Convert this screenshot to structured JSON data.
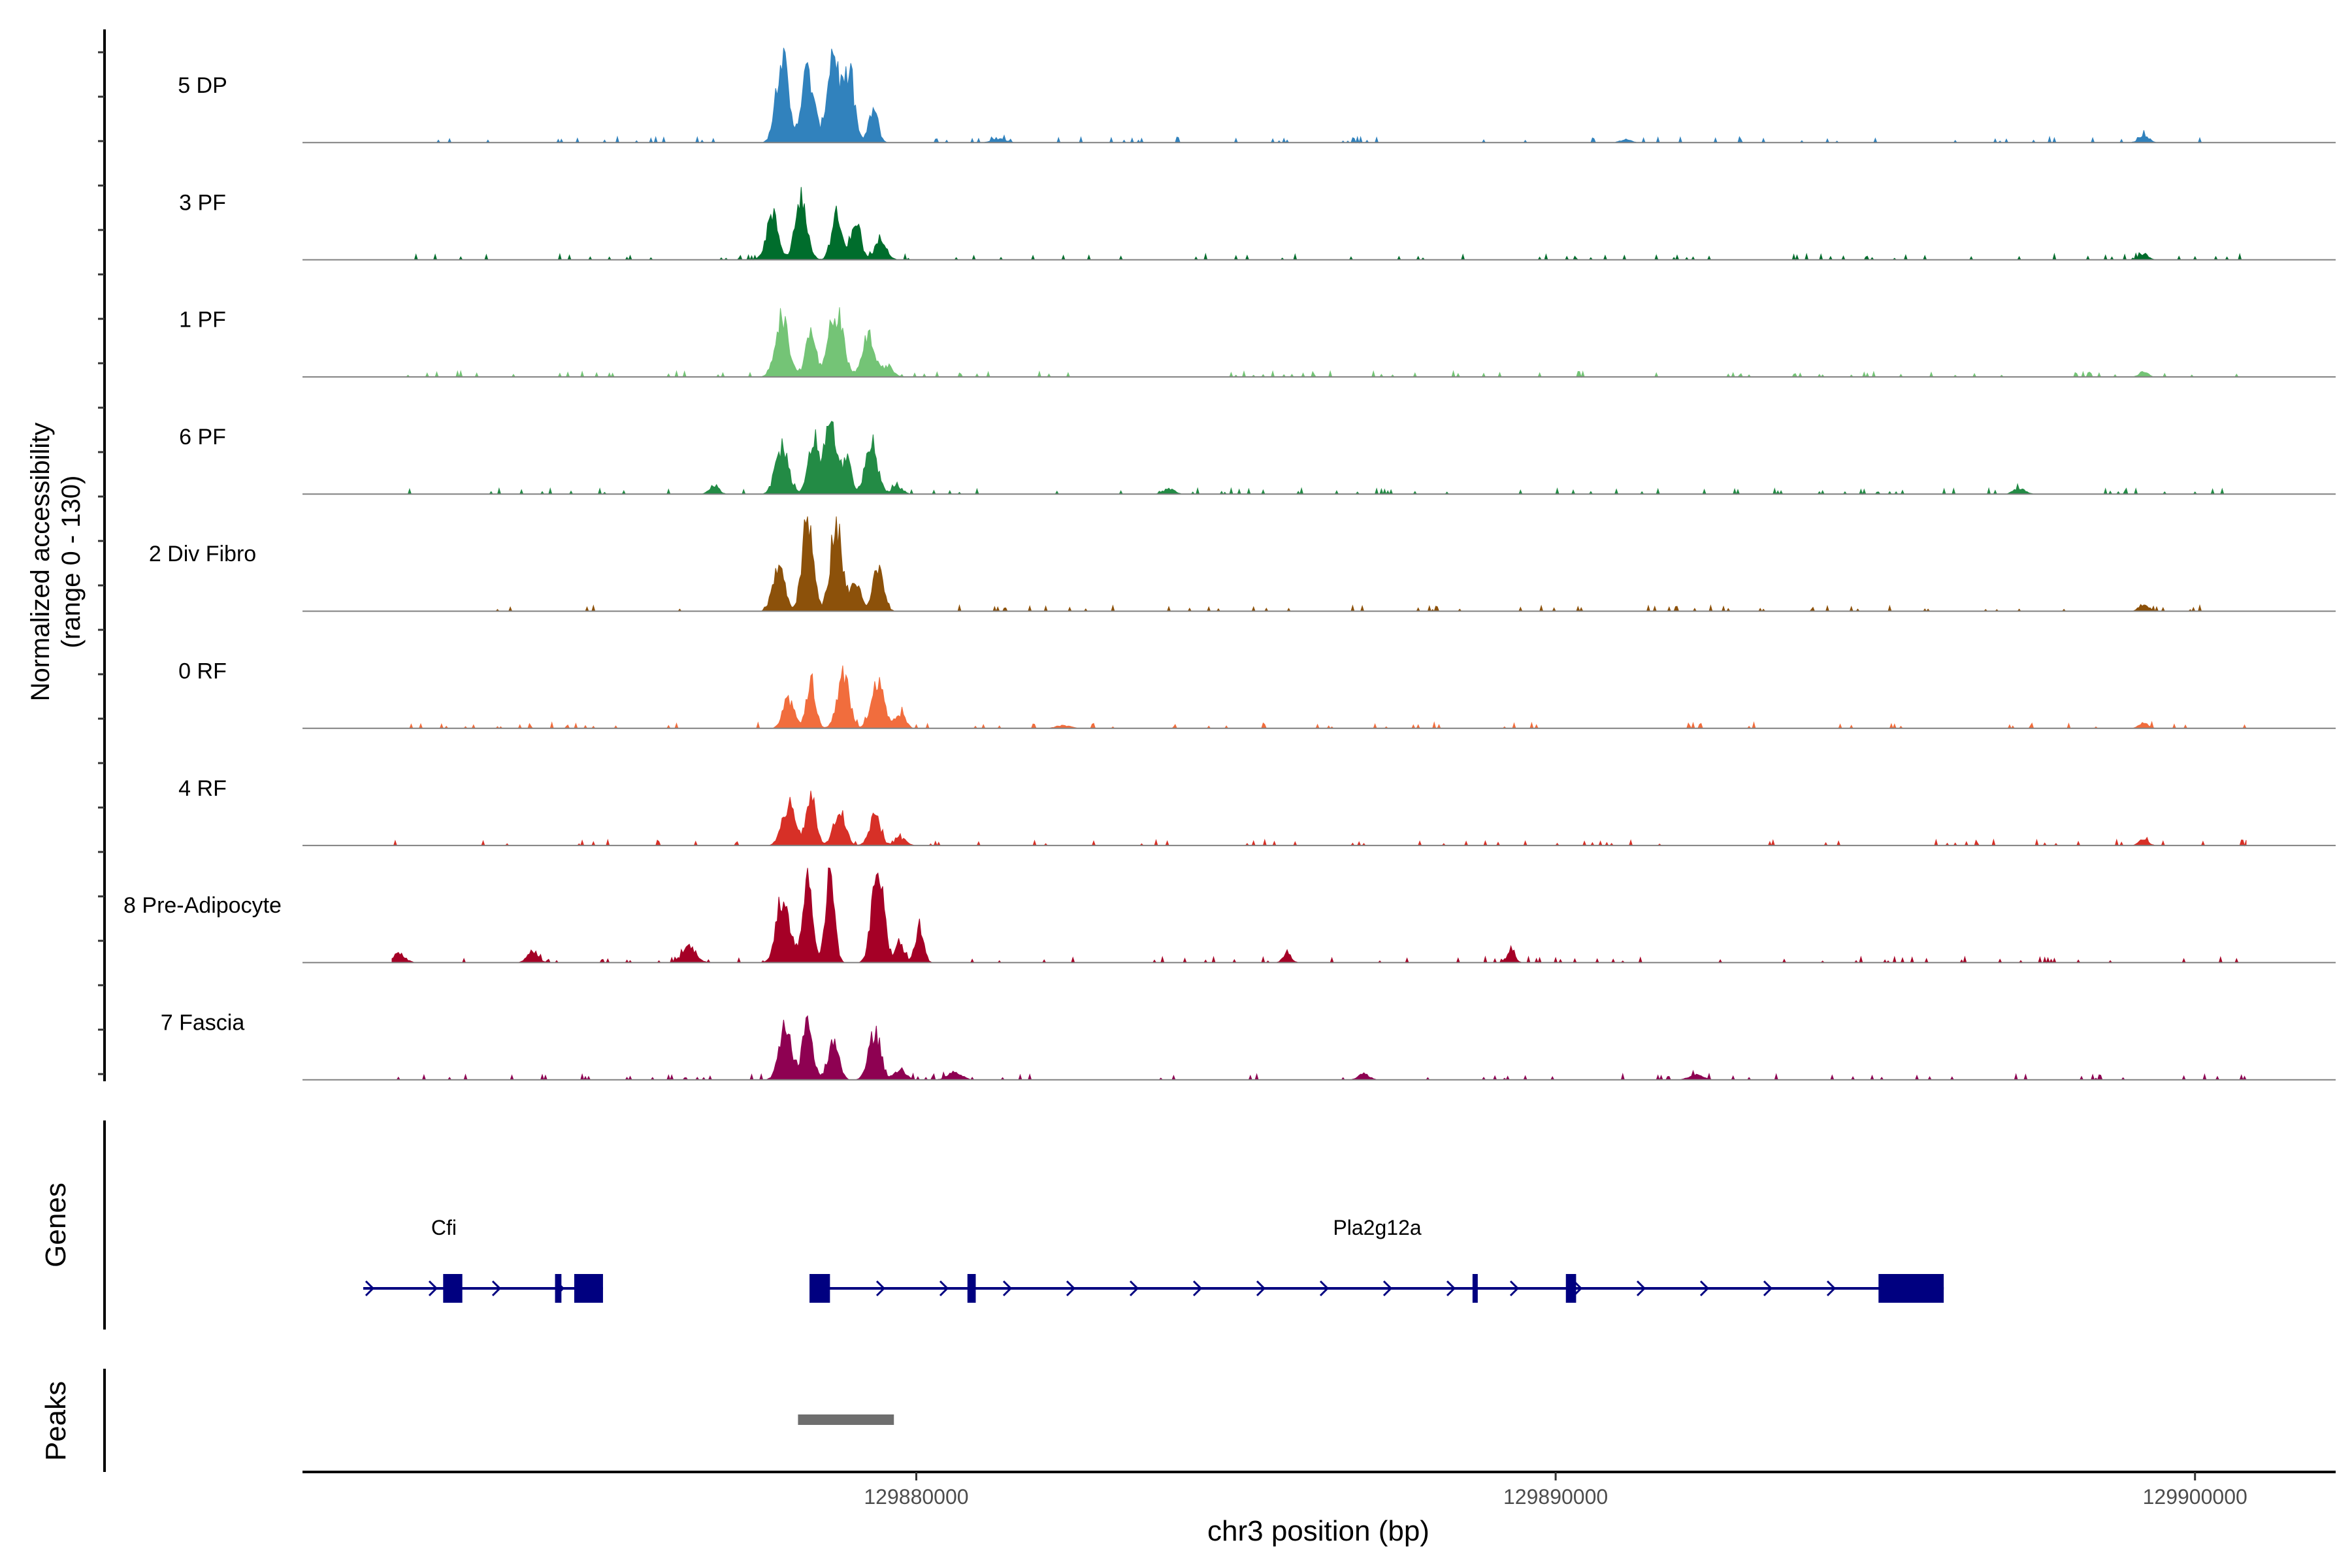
{
  "chart_data": {
    "type": "area",
    "title": "",
    "ylabel": [
      "Normalized accessibility",
      "(range 0 - 130)"
    ],
    "xlabel": "chr3 position (bp)",
    "yrange": [
      0,
      130
    ],
    "xrange": [
      129870400,
      129902200
    ],
    "xticks": [
      {
        "value": 129880000,
        "label": "129880000"
      },
      {
        "value": 129890000,
        "label": "129890000"
      },
      {
        "value": 129900000,
        "label": "129900000"
      }
    ],
    "track_labels": {
      "genes": "Genes",
      "peaks": "Peaks"
    },
    "series": [
      {
        "name": "5 DP",
        "color": "#3182bd",
        "peaks": [
          [
            129877900,
            120,
            130
          ],
          [
            129878300,
            95,
            140
          ],
          [
            129878700,
            125,
            130
          ],
          [
            129878950,
            90,
            120
          ],
          [
            129879330,
            45,
            100
          ],
          [
            129899200,
            10,
            110
          ],
          [
            129881300,
            5,
            150
          ],
          [
            129891100,
            4,
            120
          ]
        ]
      },
      {
        "name": "3 PF",
        "color": "#006d2c",
        "peaks": [
          [
            129877750,
            60,
            130
          ],
          [
            129878200,
            85,
            130
          ],
          [
            129878750,
            60,
            110
          ],
          [
            129879050,
            55,
            110
          ],
          [
            129879450,
            30,
            120
          ],
          [
            129899200,
            8,
            100
          ]
        ]
      },
      {
        "name": "1 PF",
        "color": "#74c476",
        "peaks": [
          [
            129877900,
            75,
            150
          ],
          [
            129878350,
            60,
            110
          ],
          [
            129878750,
            85,
            160
          ],
          [
            129879250,
            55,
            130
          ],
          [
            129879550,
            15,
            120
          ],
          [
            129899200,
            7,
            100
          ]
        ]
      },
      {
        "name": "6 PF",
        "color": "#238b45",
        "peaks": [
          [
            129877900,
            65,
            140
          ],
          [
            129878400,
            75,
            120
          ],
          [
            129878650,
            100,
            110
          ],
          [
            129878900,
            50,
            110
          ],
          [
            129879300,
            70,
            130
          ],
          [
            129879700,
            10,
            120
          ],
          [
            129876840,
            12,
            100
          ],
          [
            129897250,
            8,
            120
          ],
          [
            129883950,
            7,
            120
          ]
        ]
      },
      {
        "name": "2 Div Fibro",
        "color": "#8c510a",
        "peaks": [
          [
            129877850,
            60,
            130
          ],
          [
            129878300,
            125,
            120
          ],
          [
            129878750,
            120,
            130
          ],
          [
            129879050,
            40,
            110
          ],
          [
            129879400,
            55,
            120
          ],
          [
            129899200,
            10,
            100
          ]
        ]
      },
      {
        "name": "0 RF",
        "color": "#f16d3d",
        "peaks": [
          [
            129878000,
            40,
            120
          ],
          [
            129878350,
            65,
            100
          ],
          [
            129878850,
            70,
            130
          ],
          [
            129879400,
            60,
            140
          ],
          [
            129879750,
            20,
            110
          ],
          [
            129899200,
            8,
            100
          ],
          [
            129882300,
            4,
            150
          ]
        ]
      },
      {
        "name": "4 RF",
        "color": "#d73027",
        "peaks": [
          [
            129878000,
            55,
            140
          ],
          [
            129878350,
            65,
            110
          ],
          [
            129878800,
            45,
            130
          ],
          [
            129879350,
            40,
            120
          ],
          [
            129879750,
            10,
            120
          ],
          [
            129899200,
            8,
            100
          ]
        ]
      },
      {
        "name": "8 Pre-Adipocyte",
        "color": "#a50026",
        "peaks": [
          [
            129877900,
            85,
            130
          ],
          [
            129878300,
            115,
            110
          ],
          [
            129878650,
            120,
            100
          ],
          [
            129879400,
            130,
            130
          ],
          [
            129880050,
            50,
            90
          ],
          [
            129879750,
            25,
            90
          ],
          [
            129871900,
            12,
            140
          ],
          [
            129874000,
            15,
            120
          ],
          [
            129876450,
            22,
            150
          ],
          [
            129878050,
            18,
            90
          ],
          [
            129885800,
            12,
            90
          ],
          [
            129889300,
            15,
            90
          ]
        ]
      },
      {
        "name": "7 Fascia",
        "color": "#8e0152",
        "peaks": [
          [
            129877950,
            75,
            130
          ],
          [
            129878300,
            80,
            110
          ],
          [
            129878700,
            50,
            120
          ],
          [
            129879350,
            65,
            130
          ],
          [
            129879750,
            15,
            120
          ],
          [
            129880600,
            10,
            150
          ],
          [
            129887000,
            8,
            120
          ],
          [
            129892200,
            7,
            150
          ]
        ]
      }
    ],
    "genes": [
      {
        "name": "Cfi",
        "strand": "+",
        "start": 129871350,
        "end": 129875100,
        "exons": [
          [
            129872600,
            129872900
          ],
          [
            129874350,
            129874450
          ],
          [
            129874650,
            129875100
          ]
        ]
      },
      {
        "name": "Pla2g12a",
        "strand": "+",
        "start": 129878350,
        "end": 129896070,
        "exons": [
          [
            129878330,
            129878650
          ],
          [
            129880800,
            129880930
          ],
          [
            129888700,
            129888780
          ],
          [
            129890160,
            129890320
          ],
          [
            129895050,
            129896070
          ]
        ]
      }
    ],
    "peaks": [
      [
        129878150,
        129879650
      ]
    ]
  }
}
